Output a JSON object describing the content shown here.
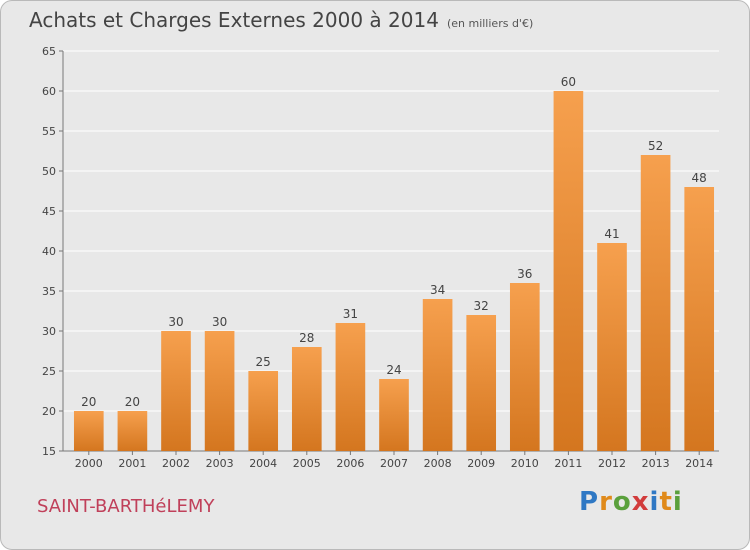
{
  "title": "Achats et Charges Externes 2000 à 2014",
  "unit": "(en milliers d'€)",
  "place": "SAINT-BARTHéLEMY",
  "brand": "Proxiti",
  "colors": {
    "bar_light": "#f6a04e",
    "bar_dark": "#d4761f",
    "plot_bg": "#e8e8e8",
    "grid": "#ffffff",
    "place_text": "#c0405a",
    "brand_letters": [
      "#2f78c4",
      "#e08a1a",
      "#5aa03c",
      "#d23c3c",
      "#2f78c4",
      "#e08a1a",
      "#5aa03c"
    ]
  },
  "chart_data": {
    "type": "bar",
    "title": "Achats et Charges Externes 2000 à 2014",
    "categories": [
      "2000",
      "2001",
      "2002",
      "2003",
      "2004",
      "2005",
      "2006",
      "2007",
      "2008",
      "2009",
      "2010",
      "2011",
      "2012",
      "2013",
      "2014"
    ],
    "values": [
      20,
      20,
      30,
      30,
      25,
      28,
      31,
      24,
      34,
      32,
      36,
      60,
      41,
      52,
      48
    ],
    "yticks": [
      15,
      20,
      25,
      30,
      35,
      40,
      45,
      50,
      55,
      60,
      65
    ],
    "ylim": [
      15,
      65
    ],
    "grid": true,
    "xlabel": "",
    "ylabel": ""
  }
}
